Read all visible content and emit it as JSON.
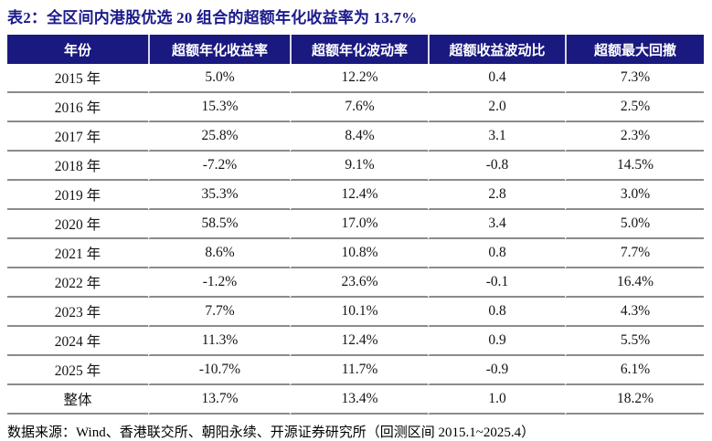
{
  "title": "表2：全区间内港股优选 20 组合的超额年化收益率为 13.7%",
  "source_note": "数据来源：Wind、香港联交所、朝阳永续、开源证券研究所（回测区间 2015.1~2025.4）",
  "colors": {
    "title_text": "#1b1a8c",
    "header_bg": "#191980",
    "header_text": "#ffffff",
    "row_border": "#8b8b8b"
  },
  "chart_data": {
    "type": "table",
    "title": "全区间内港股优选 20 组合的超额年化收益率为 13.7%",
    "columns": [
      "年份",
      "超额年化收益率",
      "超额年化波动率",
      "超额收益波动比",
      "超额最大回撤"
    ],
    "rows": [
      [
        "2015 年",
        "5.0%",
        "12.2%",
        "0.4",
        "7.3%"
      ],
      [
        "2016 年",
        "15.3%",
        "7.6%",
        "2.0",
        "2.5%"
      ],
      [
        "2017 年",
        "25.8%",
        "8.4%",
        "3.1",
        "2.3%"
      ],
      [
        "2018 年",
        "-7.2%",
        "9.1%",
        "-0.8",
        "14.5%"
      ],
      [
        "2019 年",
        "35.3%",
        "12.4%",
        "2.8",
        "3.0%"
      ],
      [
        "2020 年",
        "58.5%",
        "17.0%",
        "3.4",
        "5.0%"
      ],
      [
        "2021 年",
        "8.6%",
        "10.8%",
        "0.8",
        "7.7%"
      ],
      [
        "2022 年",
        "-1.2%",
        "23.6%",
        "-0.1",
        "16.4%"
      ],
      [
        "2023 年",
        "7.7%",
        "10.1%",
        "0.8",
        "4.3%"
      ],
      [
        "2024 年",
        "11.3%",
        "12.4%",
        "0.9",
        "5.5%"
      ],
      [
        "2025 年",
        "-10.7%",
        "11.7%",
        "-0.9",
        "6.1%"
      ],
      [
        "整体",
        "13.7%",
        "13.4%",
        "1.0",
        "18.2%"
      ]
    ]
  }
}
